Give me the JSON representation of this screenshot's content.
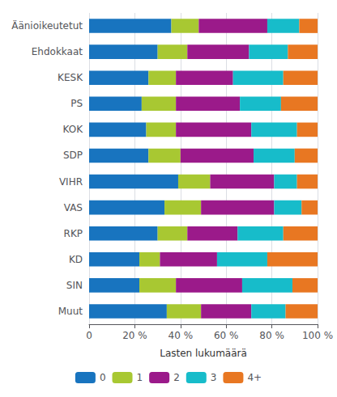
{
  "chart_data": {
    "type": "bar",
    "orientation": "horizontal",
    "stacked": true,
    "xlabel": "Lasten lukumäärä",
    "categories": [
      "Äänioikeutetut",
      "Ehdokkaat",
      "KESK",
      "PS",
      "KOK",
      "SDP",
      "VIHR",
      "VAS",
      "RKP",
      "KD",
      "SIN",
      "Muut"
    ],
    "series": [
      {
        "name": "0",
        "color": "#1874bf",
        "values": [
          36,
          30,
          26,
          23,
          25,
          26,
          39,
          33,
          30,
          22,
          22,
          34
        ]
      },
      {
        "name": "1",
        "color": "#a8c832",
        "values": [
          12,
          13,
          12,
          15,
          13,
          14,
          14,
          16,
          13,
          9,
          16,
          15
        ]
      },
      {
        "name": "2",
        "color": "#9b1a8a",
        "values": [
          30,
          27,
          25,
          28,
          33,
          32,
          28,
          32,
          22,
          25,
          29,
          22
        ]
      },
      {
        "name": "3",
        "color": "#17bcca",
        "values": [
          14,
          17,
          22,
          18,
          20,
          18,
          10,
          12,
          20,
          22,
          22,
          15
        ]
      },
      {
        "name": "4+",
        "color": "#e87722",
        "values": [
          8,
          13,
          15,
          16,
          9,
          10,
          9,
          7,
          15,
          22,
          11,
          14
        ]
      }
    ],
    "xlim": [
      0,
      100
    ],
    "xticks": [
      0,
      {
        "value": 20,
        "label": "20 %"
      },
      {
        "value": 40,
        "label": "40 %"
      },
      {
        "value": 60,
        "label": "60 %"
      },
      {
        "value": 80,
        "label": "80 %"
      },
      {
        "value": 100,
        "label": "100 %"
      }
    ],
    "grid": true,
    "legend": "bottom"
  }
}
